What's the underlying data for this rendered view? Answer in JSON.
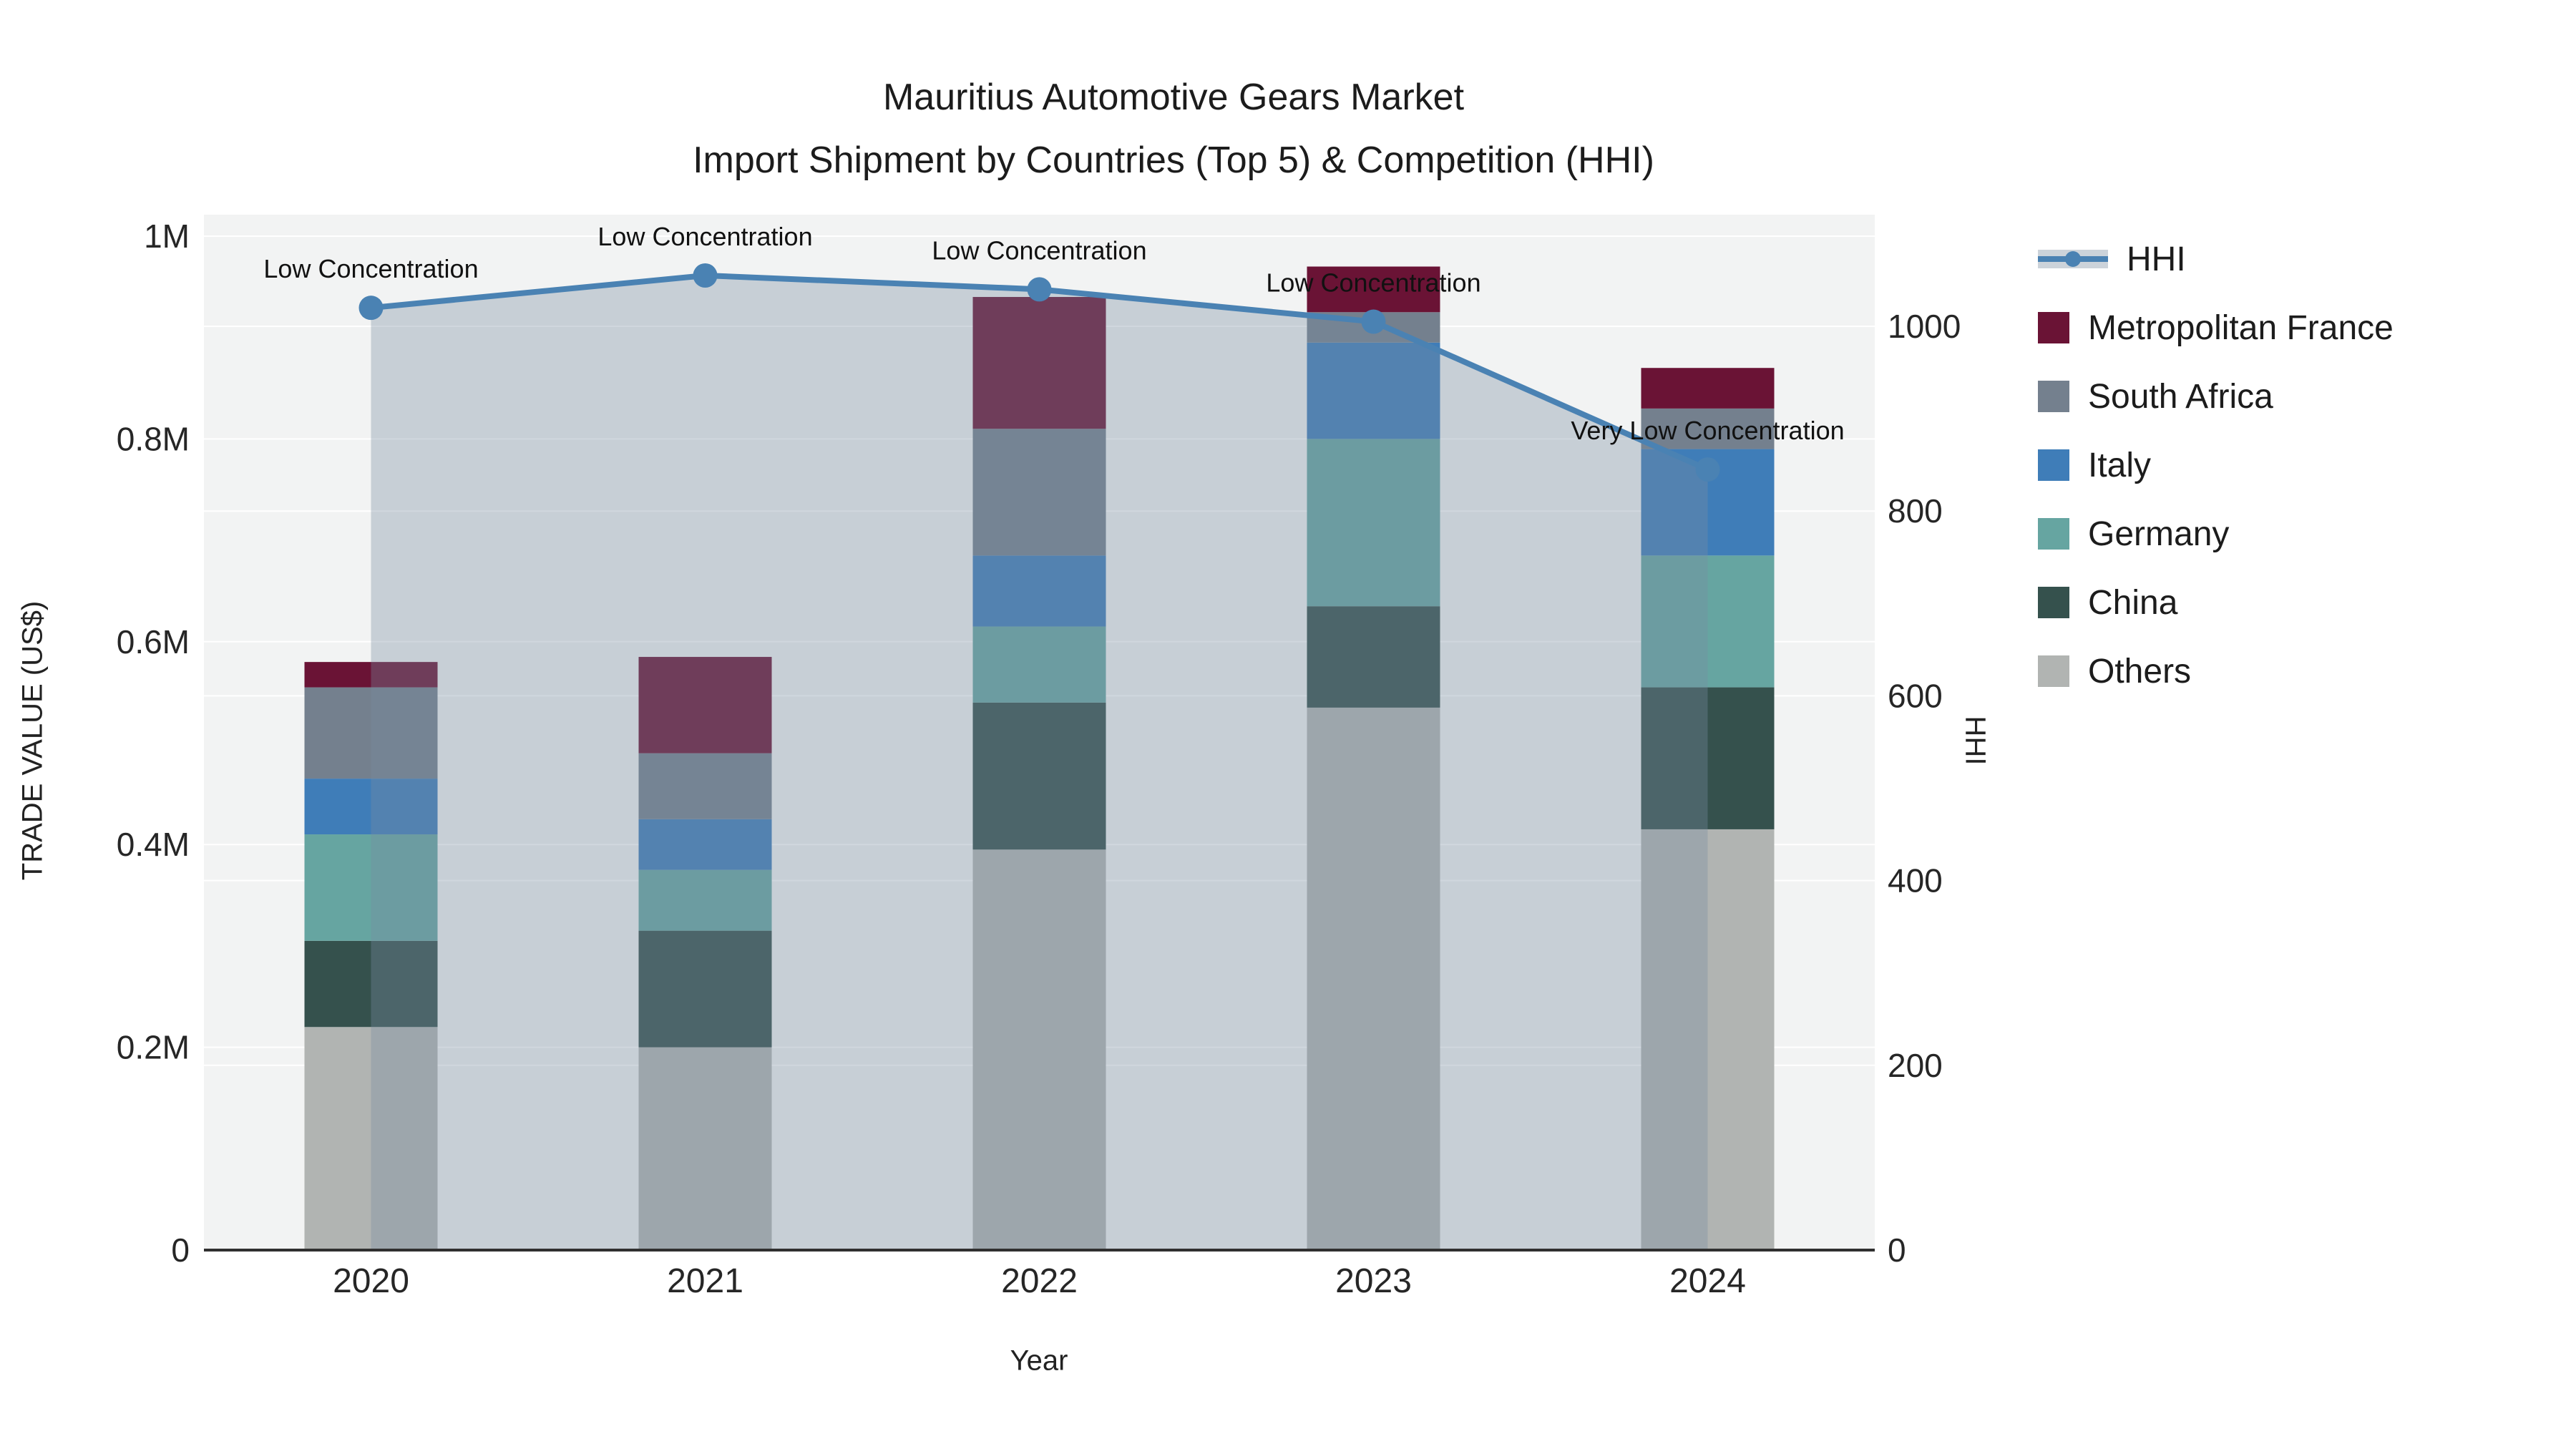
{
  "title": {
    "line1": "Mauritius Automotive Gears Market",
    "line2": "Import Shipment by Countries (Top 5) & Competition (HHI)"
  },
  "colors": {
    "plot_background": "#f2f3f3",
    "gridline": "#ffffff",
    "axis_line": "#303030",
    "hhi_line": "#4a82b3",
    "hhi_area_fill": "rgba(120,140,160,0.35)",
    "legend_band": "#ccd3da",
    "text": "#1c1c1c"
  },
  "legend": {
    "items": [
      {
        "label": "HHI",
        "type": "line",
        "color": "#4a82b3",
        "band": "#ccd3da"
      },
      {
        "label": "Metropolitan France",
        "type": "swatch",
        "color": "#6a1335"
      },
      {
        "label": "South Africa",
        "type": "swatch",
        "color": "#74808e"
      },
      {
        "label": "Italy",
        "type": "swatch",
        "color": "#3f7db8"
      },
      {
        "label": "Germany",
        "type": "swatch",
        "color": "#66a5a1"
      },
      {
        "label": "China",
        "type": "swatch",
        "color": "#35514d"
      },
      {
        "label": "Others",
        "type": "swatch",
        "color": "#b1b4b2"
      }
    ]
  },
  "chart_data": {
    "type": "bar",
    "subtype": "stacked-bars-with-line-overlay",
    "title": "Mauritius Automotive Gears Market — Import Shipment by Countries (Top 5) & Competition (HHI)",
    "categories": [
      "2020",
      "2021",
      "2022",
      "2023",
      "2024"
    ],
    "x_label": "Year",
    "bar_value_unit": "US$",
    "series": [
      {
        "name": "Metropolitan France",
        "color": "#6a1335",
        "values": [
          25000,
          95000,
          130000,
          45000,
          40000
        ]
      },
      {
        "name": "South Africa",
        "color": "#74808e",
        "values": [
          90000,
          65000,
          125000,
          30000,
          40000
        ]
      },
      {
        "name": "Italy",
        "color": "#3f7db8",
        "values": [
          55000,
          50000,
          70000,
          95000,
          105000
        ]
      },
      {
        "name": "Germany",
        "color": "#66a5a1",
        "values": [
          105000,
          60000,
          75000,
          165000,
          130000
        ]
      },
      {
        "name": "China",
        "color": "#35514d",
        "values": [
          85000,
          115000,
          145000,
          100000,
          140000
        ]
      },
      {
        "name": "Others",
        "color": "#b1b4b2",
        "values": [
          220000,
          200000,
          395000,
          535000,
          415000
        ]
      }
    ],
    "stack_order_bottom_to_top": [
      "Others",
      "China",
      "Germany",
      "Italy",
      "South Africa",
      "Metropolitan France"
    ],
    "bar_totals": [
      580000,
      585000,
      940000,
      970000,
      870000
    ],
    "line_series": {
      "name": "HHI",
      "color": "#4a82b3",
      "fill_color": "rgba(120,140,160,0.35)",
      "values": [
        1020,
        1055,
        1040,
        1005,
        845
      ]
    },
    "annotations": [
      "Low Concentration",
      "Low Concentration",
      "Low Concentration",
      "Low Concentration",
      "Very Low Concentration"
    ],
    "y_left": {
      "label": "TRADE VALUE (US$)",
      "range": [
        0,
        1000000
      ],
      "ticks": [
        {
          "v": 0,
          "t": "0"
        },
        {
          "v": 200000,
          "t": "0.2M"
        },
        {
          "v": 400000,
          "t": "0.4M"
        },
        {
          "v": 600000,
          "t": "0.6M"
        },
        {
          "v": 800000,
          "t": "0.8M"
        },
        {
          "v": 1000000,
          "t": "1M"
        }
      ]
    },
    "y_right": {
      "label": "HHI",
      "range": [
        0,
        1120
      ],
      "ticks": [
        {
          "v": 0,
          "t": "0"
        },
        {
          "v": 200,
          "t": "200"
        },
        {
          "v": 400,
          "t": "400"
        },
        {
          "v": 600,
          "t": "600"
        },
        {
          "v": 800,
          "t": "800"
        },
        {
          "v": 1000,
          "t": "1000"
        }
      ]
    },
    "grid": true,
    "legend_position": "right"
  }
}
